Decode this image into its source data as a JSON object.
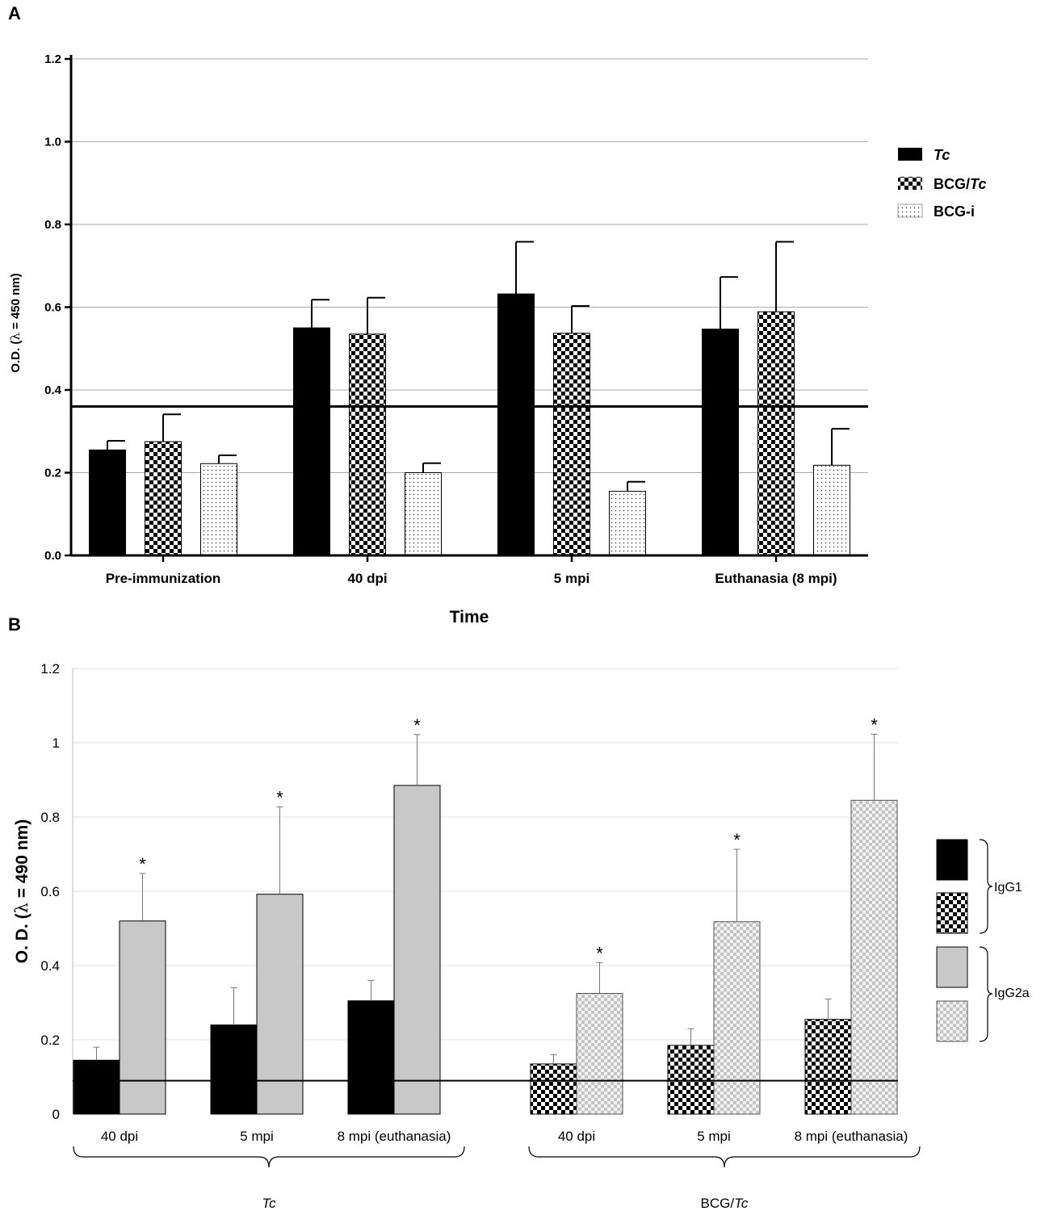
{
  "colors": {
    "black": "#000000",
    "gray": "#c8c8c8",
    "grid": "#a8a8a8",
    "gridB": "#e2e2e2"
  },
  "chart_data": [
    {
      "panel": "A",
      "type": "bar",
      "title": "",
      "xlabel": "Time",
      "ylabel_prefix": "O.D. (",
      "ylabel_symbol": "λ",
      "ylabel_suffix": " = 450 nm)",
      "ylim": [
        0,
        1.2
      ],
      "yticks": [
        "0.0",
        "0.2",
        "0.4",
        "0.6",
        "0.8",
        "1.0",
        "1.2"
      ],
      "grid": true,
      "legend_position": "right",
      "cutoff": 0.36,
      "categories": [
        "Pre-immunization",
        "40 dpi",
        "5 mpi",
        "Euthanasia (8 mpi)"
      ],
      "series": [
        {
          "name": "Tc",
          "label_prefix": "",
          "label_italic": "Tc",
          "pattern": "solid",
          "values": [
            0.255,
            0.55,
            0.632,
            0.547
          ],
          "errors": [
            0.022,
            0.068,
            0.126,
            0.126
          ]
        },
        {
          "name": "BCG/Tc",
          "label_prefix": "BCG/",
          "label_italic": "Tc",
          "pattern": "checker",
          "values": [
            0.275,
            0.535,
            0.537,
            0.589
          ],
          "errors": [
            0.066,
            0.088,
            0.066,
            0.169
          ]
        },
        {
          "name": "BCG-i",
          "label_prefix": "BCG-i",
          "label_italic": "",
          "pattern": "dots",
          "values": [
            0.222,
            0.2,
            0.155,
            0.218
          ],
          "errors": [
            0.02,
            0.023,
            0.023,
            0.088
          ]
        }
      ]
    },
    {
      "panel": "B",
      "type": "bar",
      "title": "",
      "xlabel": "",
      "ylabel_prefix": "O. D. (",
      "ylabel_symbol": "λ",
      "ylabel_suffix": " = 490 nm)",
      "ylim": [
        0,
        1.2
      ],
      "yticks": [
        "0",
        "0.2",
        "0.4",
        "0.6",
        "0.8",
        "1",
        "1.2"
      ],
      "grid": true,
      "legend_position": "right",
      "cutoff": 0.09,
      "groups": [
        {
          "name": "Tc",
          "label_prefix": "",
          "label_italic": "Tc",
          "categories": [
            "40 dpi",
            "5 mpi",
            "8 mpi (euthanasia)"
          ]
        },
        {
          "name": "BCG/Tc",
          "label_prefix": "BCG/",
          "label_italic": "Tc",
          "categories": [
            "40 dpi",
            "5 mpi",
            "8 mpi (euthanasia)"
          ]
        }
      ],
      "series": [
        {
          "name": "IgG1 (Tc)",
          "group": 0,
          "subclass": "IgG1",
          "pattern": "solid",
          "values": [
            0.145,
            0.24,
            0.305
          ],
          "errors": [
            0.035,
            0.1,
            0.055
          ]
        },
        {
          "name": "IgG2a (Tc)",
          "group": 0,
          "subclass": "IgG2a",
          "pattern": "gray",
          "values": [
            0.52,
            0.592,
            0.885
          ],
          "errors": [
            0.128,
            0.235,
            0.137
          ]
        },
        {
          "name": "IgG1 (BCG/Tc)",
          "group": 1,
          "subclass": "IgG1",
          "pattern": "checker",
          "values": [
            0.135,
            0.185,
            0.255
          ],
          "errors": [
            0.025,
            0.045,
            0.055
          ]
        },
        {
          "name": "IgG2a (BCG/Tc)",
          "group": 1,
          "subclass": "IgG2a",
          "pattern": "graychecker",
          "values": [
            0.325,
            0.518,
            0.845
          ],
          "errors": [
            0.083,
            0.195,
            0.178
          ]
        }
      ],
      "significance_marker": "*",
      "legend": [
        "IgG1",
        "IgG2a"
      ]
    }
  ]
}
